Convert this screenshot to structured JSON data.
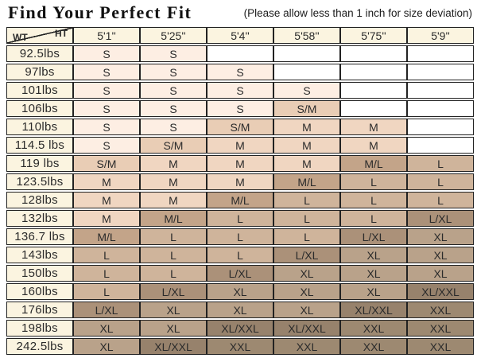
{
  "page": {
    "title": "Find Your Perfect Fit",
    "note": "(Please allow less than 1 inch for size deviation)"
  },
  "table": {
    "corner": {
      "top": "HT",
      "bottom": "WT"
    },
    "height_headers": [
      "5'1''",
      "5'25''",
      "5'4''",
      "5'58''",
      "5'75''",
      "5'9''"
    ],
    "rows": [
      {
        "weight": "92.5lbs",
        "sizes": [
          "S",
          "S",
          "",
          "",
          "",
          ""
        ]
      },
      {
        "weight": "97lbs",
        "sizes": [
          "S",
          "S",
          "S",
          "",
          "",
          ""
        ]
      },
      {
        "weight": "101lbs",
        "sizes": [
          "S",
          "S",
          "S",
          "S",
          "",
          ""
        ]
      },
      {
        "weight": "106lbs",
        "sizes": [
          "S",
          "S",
          "S",
          "S/M",
          "",
          ""
        ]
      },
      {
        "weight": "110lbs",
        "sizes": [
          "S",
          "S",
          "S/M",
          "M",
          "M",
          ""
        ]
      },
      {
        "weight": "114.5 lbs",
        "sizes": [
          "S",
          "S/M",
          "M",
          "M",
          "M",
          ""
        ]
      },
      {
        "weight": "119 lbs",
        "sizes": [
          "S/M",
          "M",
          "M",
          "M",
          "M/L",
          "L"
        ]
      },
      {
        "weight": "123.5lbs",
        "sizes": [
          "M",
          "M",
          "M",
          "M/L",
          "L",
          "L"
        ]
      },
      {
        "weight": "128lbs",
        "sizes": [
          "M",
          "M",
          "M/L",
          "L",
          "L",
          "L"
        ]
      },
      {
        "weight": "132lbs",
        "sizes": [
          "M",
          "M/L",
          "L",
          "L",
          "L",
          "L/XL"
        ]
      },
      {
        "weight": "136.7 lbs",
        "sizes": [
          "M/L",
          "L",
          "L",
          "L",
          "L/XL",
          "XL"
        ]
      },
      {
        "weight": "143lbs",
        "sizes": [
          "L",
          "L",
          "L",
          "L/XL",
          "XL",
          "XL"
        ]
      },
      {
        "weight": "150lbs",
        "sizes": [
          "L",
          "L",
          "L/XL",
          "XL",
          "XL",
          "XL"
        ]
      },
      {
        "weight": "160lbs",
        "sizes": [
          "L",
          "L/XL",
          "XL",
          "XL",
          "XL",
          "XL/XXL"
        ]
      },
      {
        "weight": "176lbs",
        "sizes": [
          "L/XL",
          "XL",
          "XL",
          "XL",
          "XL/XXL",
          "XXL"
        ]
      },
      {
        "weight": "198lbs",
        "sizes": [
          "XL",
          "XL",
          "XL/XXL",
          "XL/XXL",
          "XXL",
          "XXL"
        ]
      },
      {
        "weight": "242.5lbs",
        "sizes": [
          "XL",
          "XL/XXL",
          "XXL",
          "XXL",
          "XXL",
          "XXL"
        ]
      }
    ]
  },
  "colors": {
    "border": "#222222",
    "label_bg": "#fbf4e0",
    "empty_bg": "#ffffff",
    "size_bg": {
      "S": "#fdeee3",
      "S/M": "#e9cdb5",
      "M": "#f0d6c1",
      "M/L": "#c3a489",
      "L": "#cfb49b",
      "L/XL": "#ab9179",
      "XL": "#b9a28a",
      "XL/XXL": "#97826c",
      "XXL": "#9d8971"
    }
  }
}
